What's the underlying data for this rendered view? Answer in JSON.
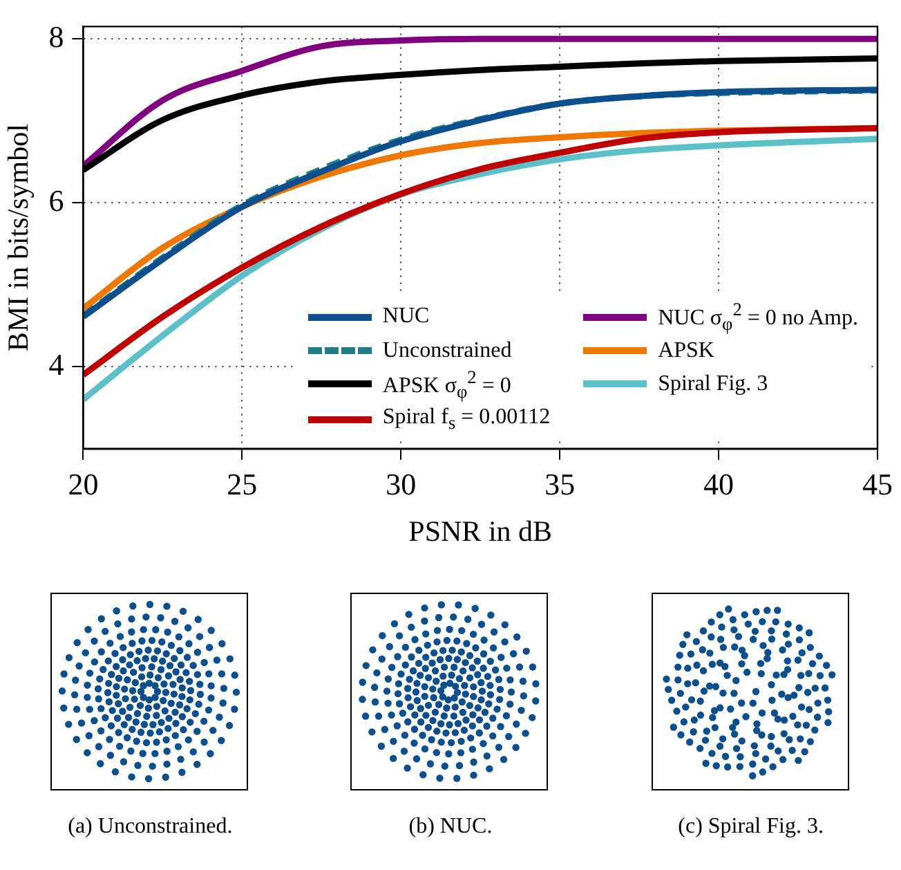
{
  "chart_data": {
    "type": "line",
    "xlabel": "PSNR in dB",
    "ylabel": "BMI in bits/symbol",
    "x": [
      20,
      22.5,
      25,
      27.5,
      30,
      32.5,
      35,
      37.5,
      40,
      45
    ],
    "xlim": [
      20,
      45
    ],
    "xticks": [
      20,
      25,
      30,
      35,
      40,
      45
    ],
    "ylim": [
      3,
      8.15
    ],
    "yticks": [
      4,
      6,
      8
    ],
    "grid": true,
    "legend": "bottom right",
    "marker": "none",
    "series": [
      {
        "name": "NUC",
        "color": "#0b4f8f",
        "values": [
          4.61,
          5.31,
          5.95,
          6.38,
          6.75,
          7.01,
          7.21,
          7.3,
          7.35,
          7.38
        ]
      },
      {
        "name": "Unconstrained",
        "color": "#1f7f86",
        "line_style": "dashed",
        "values": [
          4.62,
          5.33,
          5.97,
          6.41,
          6.77,
          7.02,
          7.21,
          7.3,
          7.34,
          7.37
        ]
      },
      {
        "name": "APSK σ$_{φ}$$^{2}$ = 0",
        "color": "#000000",
        "values": [
          6.4,
          7.01,
          7.31,
          7.48,
          7.56,
          7.62,
          7.66,
          7.7,
          7.73,
          7.76
        ]
      },
      {
        "name": "Spiral f$_{s}$ = 0.00112",
        "color": "#c00000",
        "values": [
          3.9,
          4.61,
          5.21,
          5.71,
          6.11,
          6.41,
          6.61,
          6.78,
          6.86,
          6.91
        ]
      },
      {
        "name": "NUC σ$_{φ}$$^{2}$ = 0 no Amp.",
        "color": "#800080",
        "values": [
          6.45,
          7.25,
          7.61,
          7.91,
          7.98,
          8.0,
          8.0,
          8.0,
          8.0,
          8.0
        ]
      },
      {
        "name": "APSK",
        "color": "#f07800",
        "values": [
          4.71,
          5.45,
          5.95,
          6.32,
          6.58,
          6.73,
          6.8,
          6.85,
          6.88,
          6.91
        ]
      },
      {
        "name": "Spiral Fig. 3",
        "color": "#5bc0c8",
        "values": [
          3.6,
          4.38,
          5.11,
          5.68,
          6.1,
          6.35,
          6.53,
          6.64,
          6.7,
          6.78
        ]
      }
    ],
    "annotations": [
      "(a) Unconstrained.",
      "(b) NUC.",
      "(c) Spiral Fig. 3."
    ]
  }
}
